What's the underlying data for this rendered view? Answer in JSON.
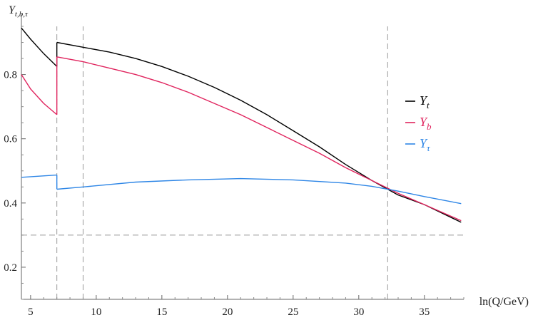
{
  "chart_data": {
    "type": "line",
    "xlabel": "ln(Q/GeV)",
    "ylabel": "Y_{t,b,τ}",
    "xlim": [
      4.3,
      38.0
    ],
    "ylim": [
      0.1,
      0.97
    ],
    "x_ticks": [
      5,
      10,
      15,
      20,
      25,
      30,
      35
    ],
    "y_ticks": [
      0.2,
      0.4,
      0.6,
      0.8
    ],
    "x_tick_labels": [
      "5",
      "10",
      "15",
      "20",
      "25",
      "30",
      "35"
    ],
    "y_tick_labels": [
      "0.2",
      "0.4",
      "0.6",
      "0.8"
    ],
    "reference_lines": {
      "vertical_dashed_x": [
        7.0,
        9.0,
        32.2
      ],
      "horizontal_dashed_y": [
        0.3
      ]
    },
    "legend": {
      "placement": "right",
      "entries": [
        {
          "base": "Y",
          "sub": "t",
          "color": "#000000"
        },
        {
          "base": "Y",
          "sub": "b",
          "color": "#e0245e"
        },
        {
          "base": "Y",
          "sub": "τ",
          "color": "#2e86e6"
        }
      ]
    },
    "series": [
      {
        "key": "Y_t",
        "color": "#000000",
        "segments": [
          [
            [
              4.3,
              0.945
            ],
            [
              5.0,
              0.91
            ],
            [
              6.0,
              0.865
            ],
            [
              7.0,
              0.825
            ]
          ],
          [
            [
              7.0,
              0.9
            ],
            [
              9.0,
              0.885
            ],
            [
              11.0,
              0.87
            ],
            [
              13.0,
              0.85
            ],
            [
              15.0,
              0.825
            ],
            [
              17.0,
              0.795
            ],
            [
              19.0,
              0.76
            ],
            [
              21.0,
              0.72
            ],
            [
              23.0,
              0.675
            ],
            [
              25.0,
              0.625
            ],
            [
              27.0,
              0.575
            ],
            [
              29.0,
              0.52
            ],
            [
              31.0,
              0.47
            ],
            [
              33.0,
              0.425
            ],
            [
              35.0,
              0.395
            ],
            [
              37.8,
              0.34
            ]
          ]
        ]
      },
      {
        "key": "Y_b",
        "color": "#e0245e",
        "segments": [
          [
            [
              4.3,
              0.8
            ],
            [
              5.0,
              0.755
            ],
            [
              6.0,
              0.71
            ],
            [
              7.0,
              0.675
            ]
          ],
          [
            [
              7.0,
              0.855
            ],
            [
              9.0,
              0.84
            ],
            [
              11.0,
              0.82
            ],
            [
              13.0,
              0.8
            ],
            [
              15.0,
              0.775
            ],
            [
              17.0,
              0.745
            ],
            [
              19.0,
              0.71
            ],
            [
              21.0,
              0.675
            ],
            [
              23.0,
              0.635
            ],
            [
              25.0,
              0.595
            ],
            [
              27.0,
              0.555
            ],
            [
              29.0,
              0.51
            ],
            [
              31.0,
              0.47
            ],
            [
              33.0,
              0.43
            ],
            [
              35.0,
              0.395
            ],
            [
              37.8,
              0.345
            ]
          ]
        ]
      },
      {
        "key": "Y_τ",
        "color": "#2e86e6",
        "segments": [
          [
            [
              4.3,
              0.48
            ],
            [
              7.0,
              0.487
            ]
          ],
          [
            [
              7.0,
              0.443
            ],
            [
              9.0,
              0.45
            ],
            [
              13.0,
              0.465
            ],
            [
              17.0,
              0.472
            ],
            [
              21.0,
              0.476
            ],
            [
              25.0,
              0.472
            ],
            [
              29.0,
              0.462
            ],
            [
              31.0,
              0.452
            ],
            [
              33.0,
              0.437
            ],
            [
              35.0,
              0.42
            ],
            [
              37.8,
              0.398
            ]
          ]
        ]
      }
    ]
  }
}
